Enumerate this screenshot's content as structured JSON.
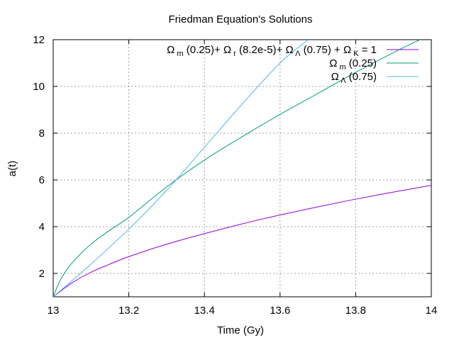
{
  "chart_data": {
    "type": "line",
    "title": "Friedman Equation's Solutions",
    "xlabel": "Time (Gy)",
    "ylabel": "a(t)",
    "xlim": [
      13,
      14
    ],
    "ylim": [
      1,
      12
    ],
    "x_ticks": [
      "13",
      "13.2",
      "13.4",
      "13.6",
      "13.8",
      "14"
    ],
    "y_ticks": [
      "2",
      "4",
      "6",
      "8",
      "10",
      "12"
    ],
    "x_tick_values": [
      13,
      13.2,
      13.4,
      13.6,
      13.8,
      14
    ],
    "y_tick_values": [
      2,
      4,
      6,
      8,
      10,
      12
    ],
    "grid": true,
    "legend_position": "top-right",
    "series": [
      {
        "name": "Ω_m (0.25)+ Ω_r (8.2e-5)+ Ω_Λ (0.75) + Ω_K = 1",
        "legend": {
          "parts": [
            "Ω",
            "m",
            " (0.25)+ ",
            "Ω",
            "r",
            " (8.2e-5)+ ",
            "Ω",
            "Λ",
            " (0.75) + ",
            "Ω",
            "K",
            " = 1"
          ]
        },
        "color": "#9400d3",
        "x": [
          13.0,
          13.05,
          13.1,
          13.15,
          13.2,
          13.3,
          13.4,
          13.5,
          13.6,
          13.7,
          13.8,
          13.9,
          14.0
        ],
        "y": [
          1.0,
          1.6,
          2.05,
          2.4,
          2.72,
          3.25,
          3.7,
          4.12,
          4.5,
          4.85,
          5.18,
          5.48,
          5.77
        ]
      },
      {
        "name": "Ω_m (0.25)",
        "legend": {
          "parts": [
            "Ω",
            "m",
            " (0.25)"
          ]
        },
        "color": "#009e73",
        "x": [
          13.0,
          13.02,
          13.05,
          13.1,
          13.15,
          13.2,
          13.3,
          13.4,
          13.5,
          13.6,
          13.7,
          13.8,
          13.9,
          13.97
        ],
        "y": [
          1.0,
          1.75,
          2.45,
          3.25,
          3.85,
          4.4,
          5.7,
          6.85,
          7.85,
          8.8,
          9.7,
          10.6,
          11.45,
          12.0
        ]
      },
      {
        "name": "Ω_Λ (0.75)",
        "legend": {
          "parts": [
            "Ω",
            "Λ",
            " (0.75)"
          ]
        },
        "color": "#56b4e9",
        "x": [
          13.0,
          13.1,
          13.2,
          13.3,
          13.4,
          13.5,
          13.6,
          13.675
        ],
        "y": [
          1.0,
          2.4,
          3.9,
          5.55,
          7.4,
          9.25,
          11.0,
          12.0
        ]
      }
    ]
  }
}
